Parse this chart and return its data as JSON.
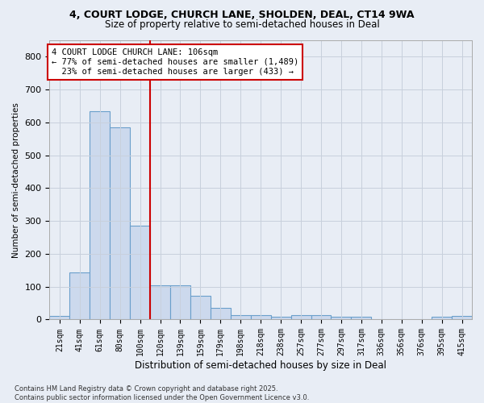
{
  "title_line1": "4, COURT LODGE, CHURCH LANE, SHOLDEN, DEAL, CT14 9WA",
  "title_line2": "Size of property relative to semi-detached houses in Deal",
  "xlabel": "Distribution of semi-detached houses by size in Deal",
  "ylabel": "Number of semi-detached properties",
  "categories": [
    "21sqm",
    "41sqm",
    "61sqm",
    "80sqm",
    "100sqm",
    "120sqm",
    "139sqm",
    "159sqm",
    "179sqm",
    "198sqm",
    "218sqm",
    "238sqm",
    "257sqm",
    "277sqm",
    "297sqm",
    "317sqm",
    "336sqm",
    "356sqm",
    "376sqm",
    "395sqm",
    "415sqm"
  ],
  "values": [
    10,
    143,
    635,
    585,
    285,
    105,
    105,
    72,
    35,
    13,
    13,
    8,
    13,
    13,
    8,
    8,
    0,
    0,
    0,
    8,
    10
  ],
  "bar_color": "#ccd9ed",
  "bar_edge_color": "#6a9fcb",
  "vline_color": "#cc0000",
  "annotation_text": "4 COURT LODGE CHURCH LANE: 106sqm\n← 77% of semi-detached houses are smaller (1,489)\n  23% of semi-detached houses are larger (433) →",
  "annotation_box_color": "white",
  "annotation_box_edge": "#cc0000",
  "ylim": [
    0,
    850
  ],
  "yticks": [
    0,
    100,
    200,
    300,
    400,
    500,
    600,
    700,
    800
  ],
  "grid_color": "#c8d0dc",
  "background_color": "#e8edf5",
  "footnote": "Contains HM Land Registry data © Crown copyright and database right 2025.\nContains public sector information licensed under the Open Government Licence v3.0."
}
